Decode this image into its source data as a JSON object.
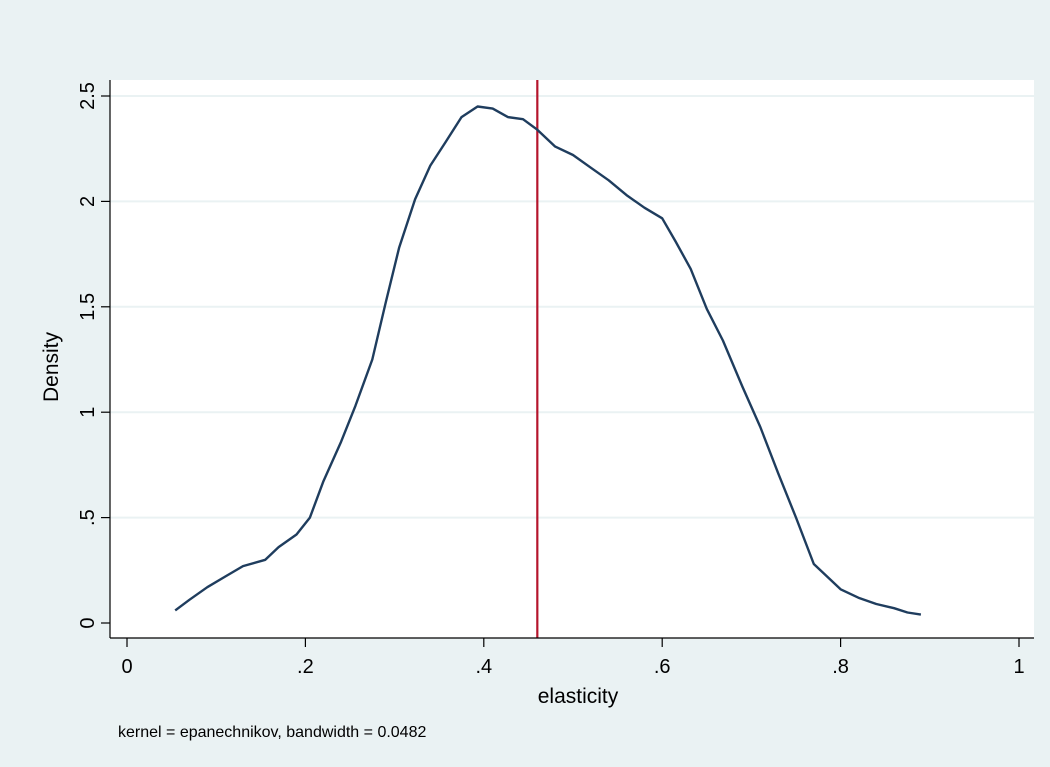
{
  "chart_data": {
    "type": "line",
    "title": "",
    "xlabel": "elasticity",
    "ylabel": "Density",
    "note": "kernel = epanechnikov, bandwidth = 0.0482",
    "xlim": [
      0,
      1
    ],
    "ylim": [
      0,
      2.5
    ],
    "xticks": [
      {
        "value": 0,
        "label": "0"
      },
      {
        "value": 0.2,
        "label": ".2"
      },
      {
        "value": 0.4,
        "label": ".4"
      },
      {
        "value": 0.6,
        "label": ".6"
      },
      {
        "value": 0.8,
        "label": ".8"
      },
      {
        "value": 1,
        "label": "1"
      }
    ],
    "yticks": [
      {
        "value": 0,
        "label": "0"
      },
      {
        "value": 0.5,
        "label": ".5"
      },
      {
        "value": 1,
        "label": "1"
      },
      {
        "value": 1.5,
        "label": "1.5"
      },
      {
        "value": 2,
        "label": "2"
      },
      {
        "value": 2.5,
        "label": "2.5"
      }
    ],
    "grid": "horizontal",
    "reference_line": {
      "x": 0.46,
      "color": "#b5152c"
    },
    "series": [
      {
        "color": "#1f3d5e",
        "x": [
          0.054,
          0.07,
          0.09,
          0.11,
          0.13,
          0.155,
          0.17,
          0.19,
          0.205,
          0.22,
          0.24,
          0.256,
          0.275,
          0.29,
          0.305,
          0.323,
          0.34,
          0.357,
          0.375,
          0.393,
          0.41,
          0.427,
          0.444,
          0.46,
          0.48,
          0.5,
          0.52,
          0.54,
          0.56,
          0.58,
          0.6,
          0.615,
          0.632,
          0.65,
          0.668,
          0.69,
          0.71,
          0.73,
          0.75,
          0.77,
          0.785,
          0.8,
          0.82,
          0.84,
          0.86,
          0.875,
          0.89
        ],
        "y": [
          0.06,
          0.11,
          0.17,
          0.22,
          0.27,
          0.3,
          0.36,
          0.42,
          0.5,
          0.67,
          0.86,
          1.03,
          1.25,
          1.52,
          1.78,
          2.01,
          2.17,
          2.28,
          2.4,
          2.45,
          2.44,
          2.4,
          2.39,
          2.34,
          2.26,
          2.22,
          2.16,
          2.1,
          2.03,
          1.97,
          1.92,
          1.81,
          1.68,
          1.49,
          1.34,
          1.12,
          0.93,
          0.71,
          0.5,
          0.28,
          0.22,
          0.16,
          0.12,
          0.09,
          0.07,
          0.05,
          0.04
        ]
      }
    ]
  }
}
